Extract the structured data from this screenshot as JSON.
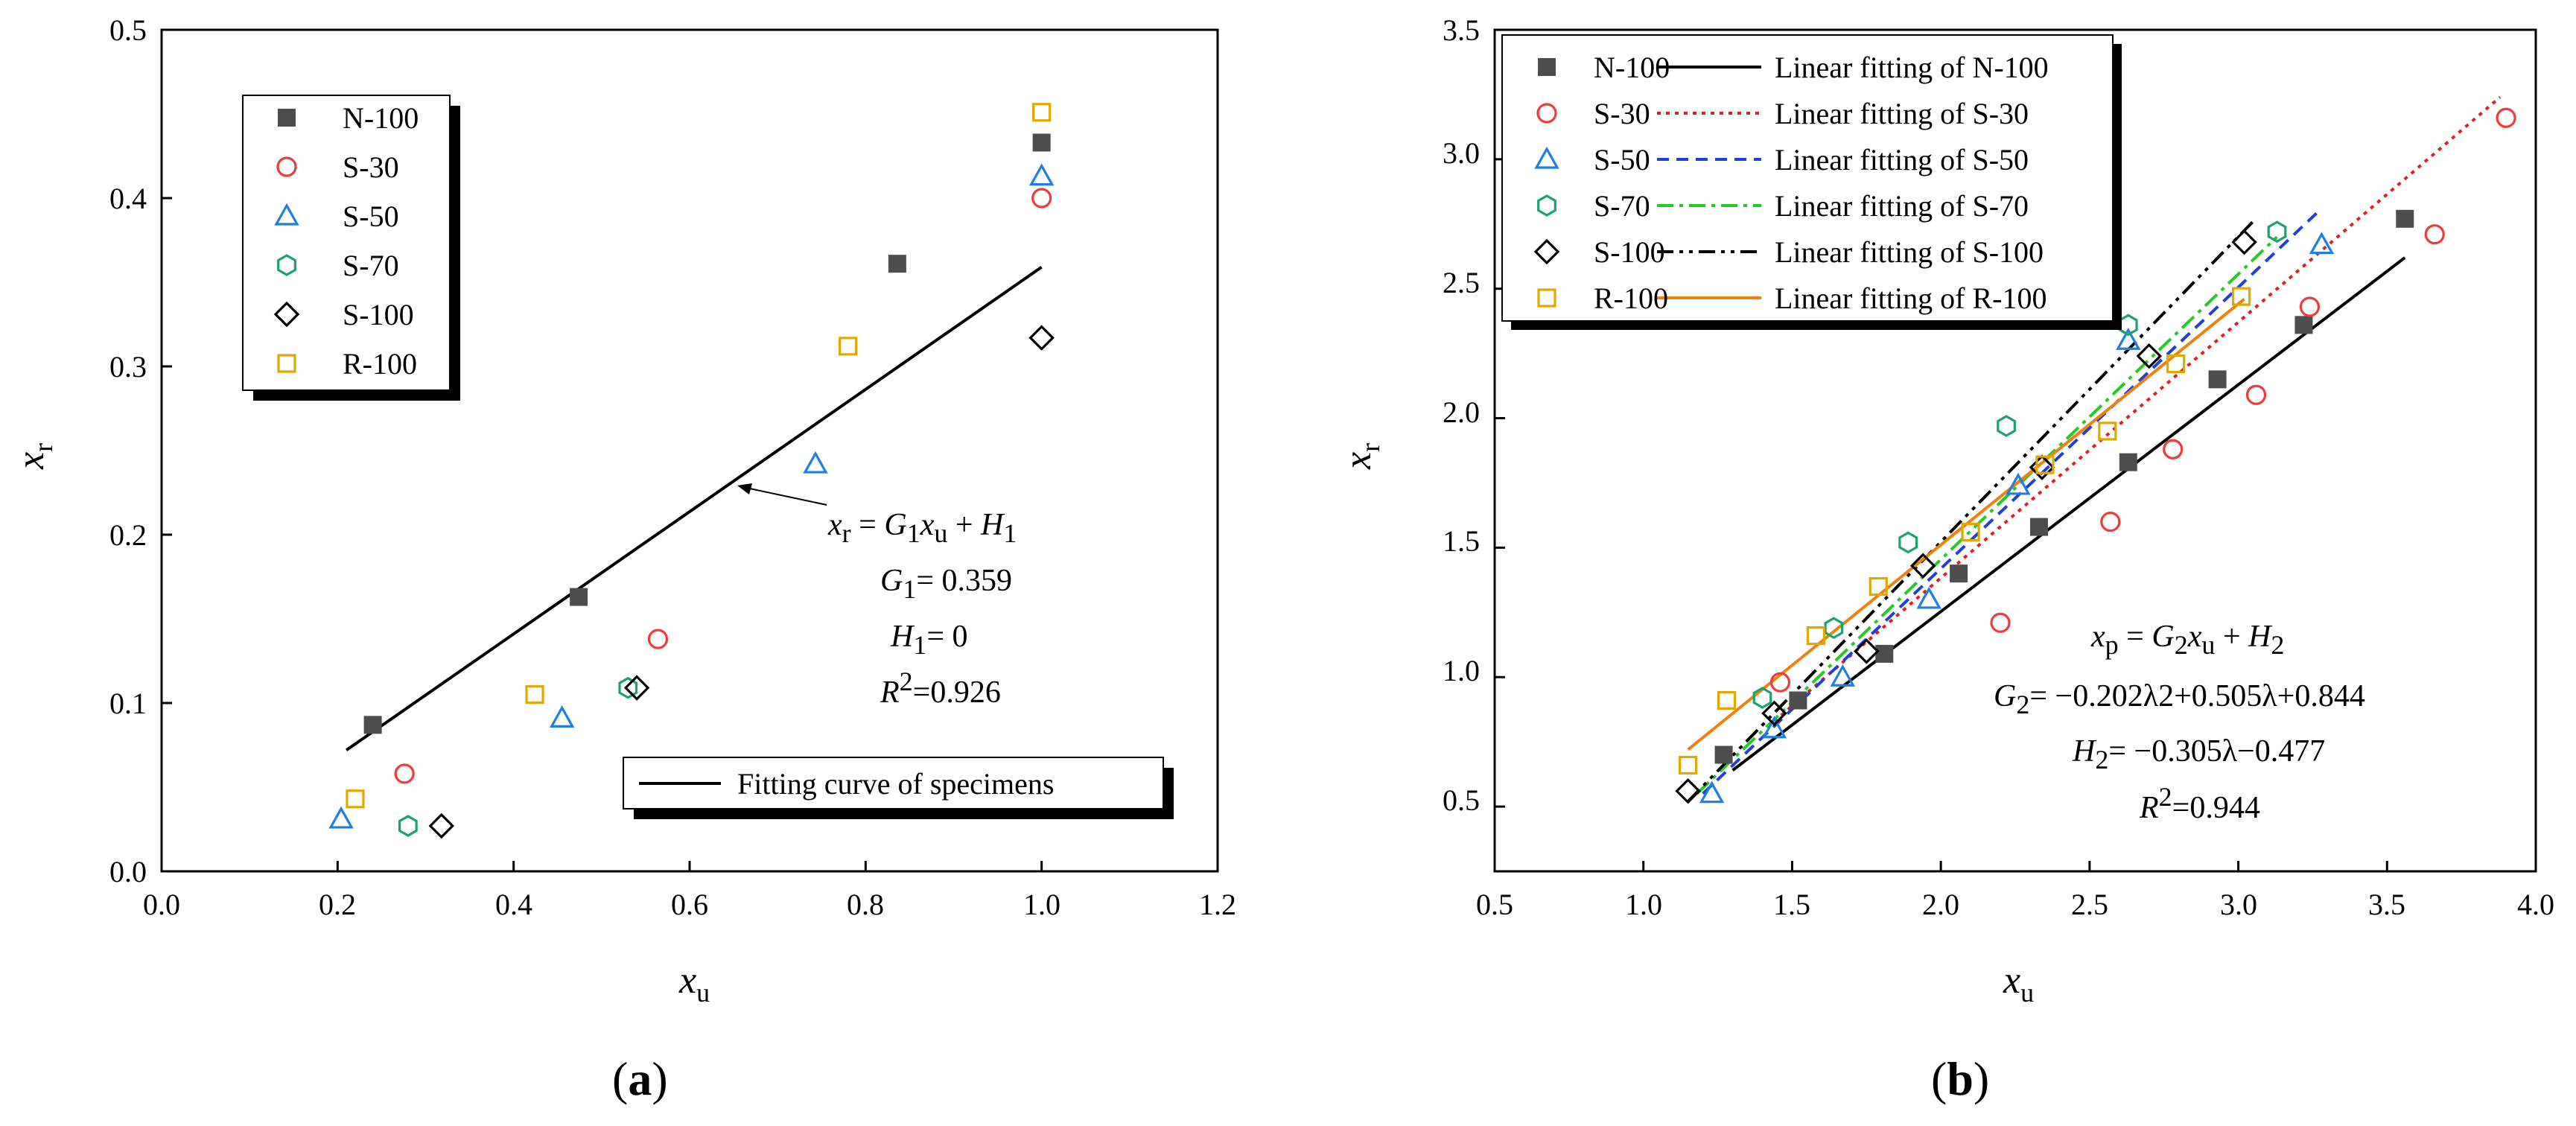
{
  "chart_data": [
    {
      "id": "a",
      "type": "scatter",
      "caption": "a",
      "xlabel_main": "x",
      "xlabel_sub": "u",
      "ylabel_main": "x",
      "ylabel_sub": "r",
      "xlim": [
        0.0,
        1.2
      ],
      "ylim": [
        0.0,
        0.5
      ],
      "xticks": [
        "0.0",
        "0.2",
        "0.4",
        "0.6",
        "0.8",
        "1.0",
        "1.2"
      ],
      "yticks": [
        "0.0",
        "0.1",
        "0.2",
        "0.3",
        "0.4",
        "0.5"
      ],
      "series": [
        {
          "name": "N-100",
          "marker": "square-filled",
          "color": "#4d4d4d",
          "x": [
            0.24,
            0.474,
            0.836,
            1.0
          ],
          "y": [
            0.087,
            0.163,
            0.361,
            0.433
          ]
        },
        {
          "name": "S-30",
          "marker": "circle",
          "color": "#ee3b3b",
          "x": [
            0.276,
            0.564,
            1.0
          ],
          "y": [
            0.058,
            0.138,
            0.4
          ]
        },
        {
          "name": "S-50",
          "marker": "triangle",
          "color": "#1f7fe0",
          "x": [
            0.204,
            0.455,
            0.743,
            1.0
          ],
          "y": [
            0.031,
            0.091,
            0.242,
            0.413
          ]
        },
        {
          "name": "S-70",
          "marker": "hexagon",
          "color": "#1aa36e",
          "x": [
            0.28,
            0.53
          ],
          "y": [
            0.027,
            0.109
          ]
        },
        {
          "name": "S-100",
          "marker": "diamond",
          "color": "#000000",
          "x": [
            0.318,
            0.54,
            1.0
          ],
          "y": [
            0.027,
            0.109,
            0.317
          ]
        },
        {
          "name": "R-100",
          "marker": "square",
          "color": "#e0a800",
          "x": [
            0.22,
            0.424,
            0.78,
            1.0
          ],
          "y": [
            0.043,
            0.105,
            0.312,
            0.451
          ]
        }
      ],
      "fits": [
        {
          "name": "Fitting curve of specimens",
          "color": "#000000",
          "dash": "",
          "x": [
            0.21,
            1.0
          ],
          "y": [
            0.072,
            0.359
          ]
        }
      ],
      "annotations": {
        "eq": "xr = G1xu + H1",
        "G1": "0.359",
        "H1": "0",
        "R2": "0.926"
      }
    },
    {
      "id": "b",
      "type": "scatter",
      "caption": "b",
      "xlabel_main": "x",
      "xlabel_sub": "u",
      "ylabel_main": "x",
      "ylabel_sub": "r",
      "xlim": [
        0.5,
        4.0
      ],
      "ylim": [
        0.25,
        3.5
      ],
      "xticks": [
        "0.5",
        "1.0",
        "1.5",
        "2.0",
        "2.5",
        "3.0",
        "3.5",
        "4.0"
      ],
      "yticks": [
        "0.5",
        "1.0",
        "1.5",
        "2.0",
        "2.5",
        "3.0",
        "3.5"
      ],
      "series": [
        {
          "name": "N-100",
          "marker": "square-filled",
          "color": "#4d4d4d",
          "x": [
            1.27,
            1.52,
            1.81,
            2.06,
            2.33,
            2.63,
            2.93,
            3.22,
            3.56
          ],
          "y": [
            0.7,
            0.91,
            1.09,
            1.4,
            1.58,
            1.83,
            2.15,
            2.36,
            2.77
          ]
        },
        {
          "name": "S-30",
          "marker": "circle",
          "color": "#ee3b3b",
          "x": [
            1.46,
            2.2,
            2.57,
            2.78,
            3.06,
            3.24,
            3.66,
            3.9
          ],
          "y": [
            0.98,
            1.21,
            1.6,
            1.88,
            2.09,
            2.43,
            2.71,
            3.16
          ]
        },
        {
          "name": "S-50",
          "marker": "triangle",
          "color": "#1f7fe0",
          "x": [
            1.23,
            1.44,
            1.67,
            1.96,
            2.26,
            2.63,
            3.28
          ],
          "y": [
            0.55,
            0.8,
            1.0,
            1.3,
            1.74,
            2.3,
            2.67
          ]
        },
        {
          "name": "S-70",
          "marker": "hexagon",
          "color": "#1aa36e",
          "x": [
            1.4,
            1.64,
            1.89,
            2.22,
            2.63,
            3.13
          ],
          "y": [
            0.92,
            1.19,
            1.52,
            1.97,
            2.36,
            2.72
          ]
        },
        {
          "name": "S-100",
          "marker": "diamond",
          "color": "#000000",
          "x": [
            1.15,
            1.44,
            1.75,
            1.94,
            2.34,
            2.7,
            3.02
          ],
          "y": [
            0.56,
            0.86,
            1.1,
            1.43,
            1.81,
            2.24,
            2.68
          ]
        },
        {
          "name": "R-100",
          "marker": "square",
          "color": "#e0a800",
          "x": [
            1.15,
            1.28,
            1.58,
            1.79,
            2.1,
            2.35,
            2.56,
            2.79,
            3.01
          ],
          "y": [
            0.66,
            0.91,
            1.16,
            1.35,
            1.56,
            1.82,
            1.95,
            2.21,
            2.47
          ]
        }
      ],
      "fits": [
        {
          "name": "Linear fitting of N-100",
          "color": "#000000",
          "dash": "",
          "x": [
            1.3,
            3.56
          ],
          "y": [
            0.64,
            2.62
          ]
        },
        {
          "name": "Linear fitting of S-30",
          "color": "#e02020",
          "dash": "5,7",
          "x": [
            1.44,
            3.88
          ],
          "y": [
            0.83,
            3.24
          ]
        },
        {
          "name": "Linear fitting of S-50",
          "color": "#1f3fe0",
          "dash": "16,10",
          "x": [
            1.2,
            3.28
          ],
          "y": [
            0.55,
            2.81
          ]
        },
        {
          "name": "Linear fitting of S-70",
          "color": "#22cc22",
          "dash": "22,8,5,8",
          "x": [
            1.18,
            3.13
          ],
          "y": [
            0.55,
            2.7
          ]
        },
        {
          "name": "Linear fitting of S-100",
          "color": "#000000",
          "dash": "22,8,5,8,5,8",
          "x": [
            1.15,
            3.05
          ],
          "y": [
            0.52,
            2.76
          ]
        },
        {
          "name": "Linear fitting of R-100",
          "color": "#f08010",
          "dash": "",
          "x": [
            1.15,
            3.02
          ],
          "y": [
            0.72,
            2.46
          ]
        }
      ],
      "annotations": {
        "eq": "xp = G2xu + H2",
        "G2": "−0.202λ2+0.505λ+0.844",
        "H2": "−0.305λ−0.477",
        "R2": "0.944"
      }
    }
  ]
}
